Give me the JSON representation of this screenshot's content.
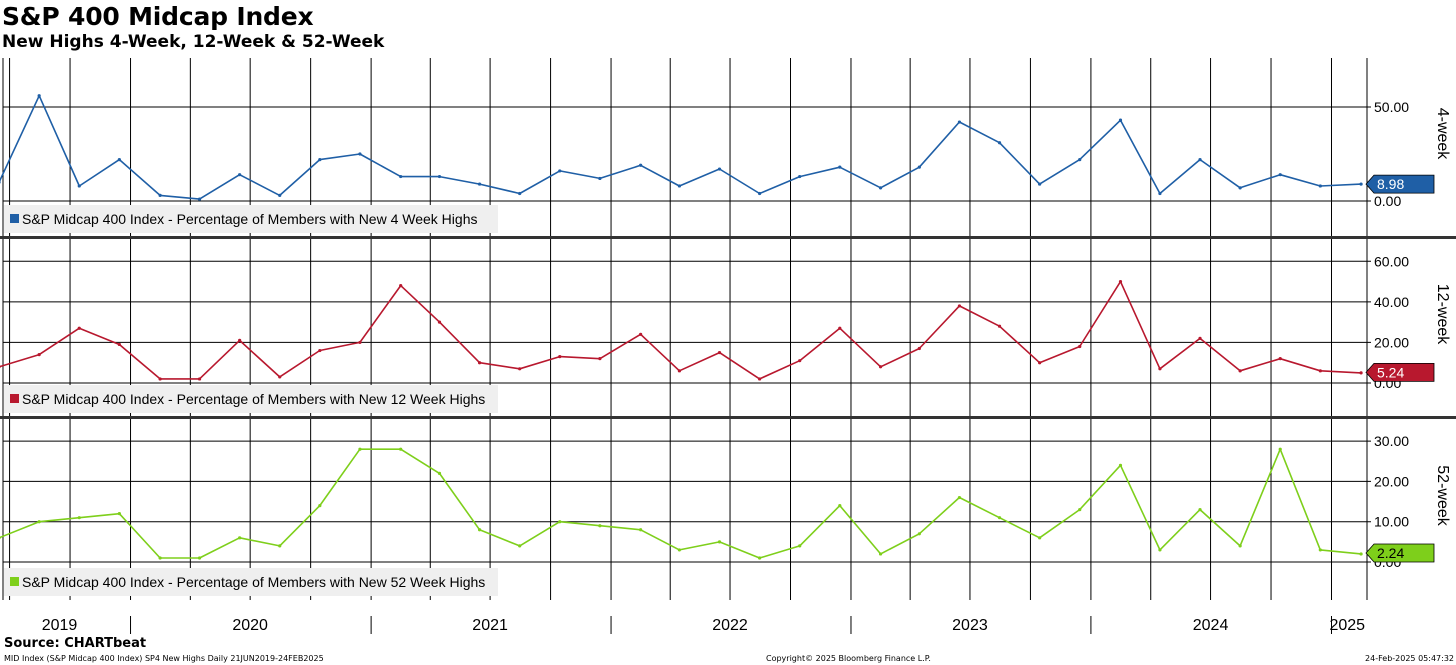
{
  "title": "S&P 400 Midcap Index",
  "subtitle": "New Highs 4-Week, 12-Week & 52-Week",
  "source": "Source: CHARTbeat",
  "footer_left": "MID Index (S&P Midcap 400 Index) SP4 New Highs  Daily 21JUN2019-24FEB2025",
  "footer_center": "Copyright© 2025 Bloomberg Finance L.P.",
  "footer_right": "24-Feb-2025 05:47:32",
  "chart_data": [
    {
      "type": "line",
      "panel_label": "4-week",
      "series": [
        {
          "name": "S&P Midcap 400 Index - Percentage of Members with New 4 Week Highs",
          "color": "#1f5fa6",
          "last_value": "8.98",
          "x": [
            "2019-06",
            "2019-08",
            "2019-10",
            "2019-12",
            "2020-02",
            "2020-04",
            "2020-06",
            "2020-08",
            "2020-10",
            "2020-12",
            "2021-02",
            "2021-04",
            "2021-06",
            "2021-08",
            "2021-10",
            "2021-12",
            "2022-02",
            "2022-04",
            "2022-06",
            "2022-08",
            "2022-10",
            "2022-12",
            "2023-02",
            "2023-04",
            "2023-06",
            "2023-08",
            "2023-10",
            "2023-12",
            "2024-02",
            "2024-04",
            "2024-06",
            "2024-08",
            "2024-10",
            "2024-12",
            "2025-02"
          ],
          "values": [
            10,
            56,
            8,
            22,
            3,
            1,
            14,
            3,
            22,
            25,
            13,
            13,
            9,
            4,
            16,
            12,
            19,
            8,
            17,
            4,
            13,
            18,
            7,
            18,
            42,
            31,
            9,
            22,
            43,
            4,
            22,
            7,
            14,
            8,
            9
          ]
        }
      ],
      "ylim": [
        0,
        75
      ],
      "yticks": [
        "0.00",
        "50.00"
      ],
      "ytick_values": [
        0,
        50
      ],
      "grid_values": [
        0,
        50
      ]
    },
    {
      "type": "line",
      "panel_label": "12-week",
      "series": [
        {
          "name": "S&P Midcap 400 Index - Percentage of Members with New 12 Week Highs",
          "color": "#b8182e",
          "last_value": "5.24",
          "x": [
            "2019-06",
            "2019-08",
            "2019-10",
            "2019-12",
            "2020-02",
            "2020-04",
            "2020-06",
            "2020-08",
            "2020-10",
            "2020-12",
            "2021-02",
            "2021-04",
            "2021-06",
            "2021-08",
            "2021-10",
            "2021-12",
            "2022-02",
            "2022-04",
            "2022-06",
            "2022-08",
            "2022-10",
            "2022-12",
            "2023-02",
            "2023-04",
            "2023-06",
            "2023-08",
            "2023-10",
            "2023-12",
            "2024-02",
            "2024-04",
            "2024-06",
            "2024-08",
            "2024-10",
            "2024-12",
            "2025-02"
          ],
          "values": [
            8,
            14,
            27,
            19,
            2,
            2,
            21,
            3,
            16,
            20,
            48,
            30,
            10,
            7,
            13,
            12,
            24,
            6,
            15,
            2,
            11,
            27,
            8,
            17,
            38,
            28,
            10,
            18,
            50,
            7,
            22,
            6,
            12,
            6,
            5
          ]
        }
      ],
      "ylim": [
        0,
        70
      ],
      "yticks": [
        "0.00",
        "20.00",
        "40.00",
        "60.00"
      ],
      "ytick_values": [
        0,
        20,
        40,
        60
      ],
      "grid_values": [
        0,
        20,
        40,
        60
      ]
    },
    {
      "type": "line",
      "panel_label": "52-week",
      "series": [
        {
          "name": "S&P Midcap 400 Index - Percentage of Members with New 52 Week Highs",
          "color": "#7ecf1b",
          "last_value": "2.24",
          "x": [
            "2019-06",
            "2019-08",
            "2019-10",
            "2019-12",
            "2020-02",
            "2020-04",
            "2020-06",
            "2020-08",
            "2020-10",
            "2020-12",
            "2021-02",
            "2021-04",
            "2021-06",
            "2021-08",
            "2021-10",
            "2021-12",
            "2022-02",
            "2022-04",
            "2022-06",
            "2022-08",
            "2022-10",
            "2022-12",
            "2023-02",
            "2023-04",
            "2023-06",
            "2023-08",
            "2023-10",
            "2023-12",
            "2024-02",
            "2024-04",
            "2024-06",
            "2024-08",
            "2024-10",
            "2024-12",
            "2025-02"
          ],
          "values": [
            6,
            10,
            11,
            12,
            1,
            1,
            6,
            4,
            14,
            28,
            28,
            22,
            8,
            4,
            10,
            9,
            8,
            3,
            5,
            1,
            4,
            14,
            2,
            7,
            16,
            11,
            6,
            13,
            24,
            3,
            13,
            4,
            28,
            3,
            2
          ]
        }
      ],
      "ylim": [
        0,
        35
      ],
      "yticks": [
        "0.00",
        "10.00",
        "20.00",
        "30.00"
      ],
      "ytick_values": [
        0,
        10,
        20,
        30
      ],
      "grid_values": [
        0,
        10,
        20,
        30
      ]
    }
  ],
  "x_axis": {
    "year_labels": [
      "2019",
      "2020",
      "2021",
      "2022",
      "2023",
      "2024",
      "2025"
    ],
    "year_label_dates": [
      "2019-09-15",
      "2020-07-01",
      "2021-07-01",
      "2022-07-01",
      "2023-07-01",
      "2024-07-01",
      "2025-01-25"
    ],
    "year_boundaries": [
      "2020-01-01",
      "2021-01-01",
      "2022-01-01",
      "2023-01-01",
      "2024-01-01",
      "2025-01-01"
    ],
    "start": "2019-06-21",
    "end": "2025-02-24"
  }
}
